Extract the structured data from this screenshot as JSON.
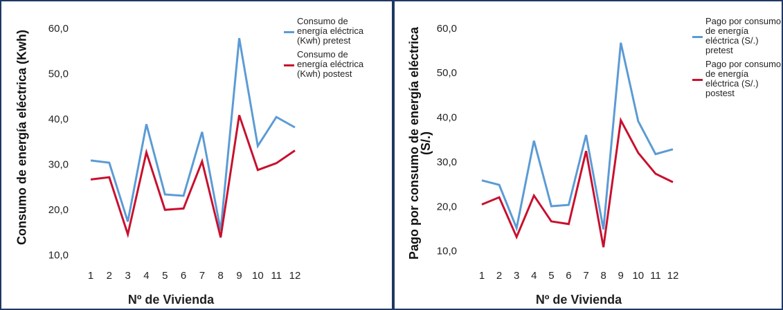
{
  "chart_data": [
    {
      "type": "line",
      "y_label": "Consumo de energía eléctrica (Kwh)",
      "x_label": "Nº de Vivienda",
      "categories": [
        "1",
        "2",
        "3",
        "4",
        "5",
        "6",
        "7",
        "8",
        "9",
        "10",
        "11",
        "12"
      ],
      "series": [
        {
          "name": "Consumo de energía eléctrica (Kwh) pretest",
          "color": "#5b9bd5",
          "values": [
            31.0,
            30.5,
            17.5,
            39.0,
            23.5,
            23.2,
            37.3,
            15.5,
            58.0,
            34.2,
            40.6,
            38.3
          ]
        },
        {
          "name": "Consumo de energía eléctrica (Kwh) postest",
          "color": "#c8102e",
          "values": [
            26.8,
            27.3,
            14.7,
            32.8,
            20.1,
            20.4,
            30.8,
            14.0,
            41.0,
            28.9,
            30.4,
            33.2
          ]
        }
      ],
      "ylim": [
        7,
        62
      ],
      "yticks": [
        {
          "value": 10,
          "label": "10,0"
        },
        {
          "value": 20,
          "label": "20,0"
        },
        {
          "value": 30,
          "label": "30,0"
        },
        {
          "value": 40,
          "label": "40,0"
        },
        {
          "value": 50,
          "label": "50,0"
        },
        {
          "value": 60,
          "label": "60,0"
        }
      ]
    },
    {
      "type": "line",
      "y_label": "Pago por consumo de energía eléctrica (S/.)",
      "x_label": "Nº de Vivienda",
      "categories": [
        "1",
        "2",
        "3",
        "4",
        "5",
        "6",
        "7",
        "8",
        "9",
        "10",
        "11",
        "12"
      ],
      "series": [
        {
          "name": "Pago por consumo de energía eléctrica (S/.) pretest",
          "color": "#5b9bd5",
          "values": [
            26.0,
            25.0,
            15.3,
            34.9,
            20.2,
            20.5,
            36.2,
            15.0,
            56.9,
            39.3,
            31.9,
            33.0
          ]
        },
        {
          "name": "Pago por consumo de energía eléctrica (S/.) postest",
          "color": "#c8102e",
          "values": [
            20.6,
            22.2,
            13.3,
            22.6,
            16.8,
            16.2,
            32.6,
            11.0,
            39.5,
            32.2,
            27.5,
            25.6
          ]
        }
      ],
      "ylim": [
        7,
        62
      ],
      "yticks": [
        {
          "value": 10,
          "label": "10,0"
        },
        {
          "value": 20,
          "label": "20,0"
        },
        {
          "value": 30,
          "label": "30,0"
        },
        {
          "value": 40,
          "label": "40,0"
        },
        {
          "value": 50,
          "label": "50,0"
        },
        {
          "value": 60,
          "label": "60,0"
        }
      ]
    }
  ]
}
